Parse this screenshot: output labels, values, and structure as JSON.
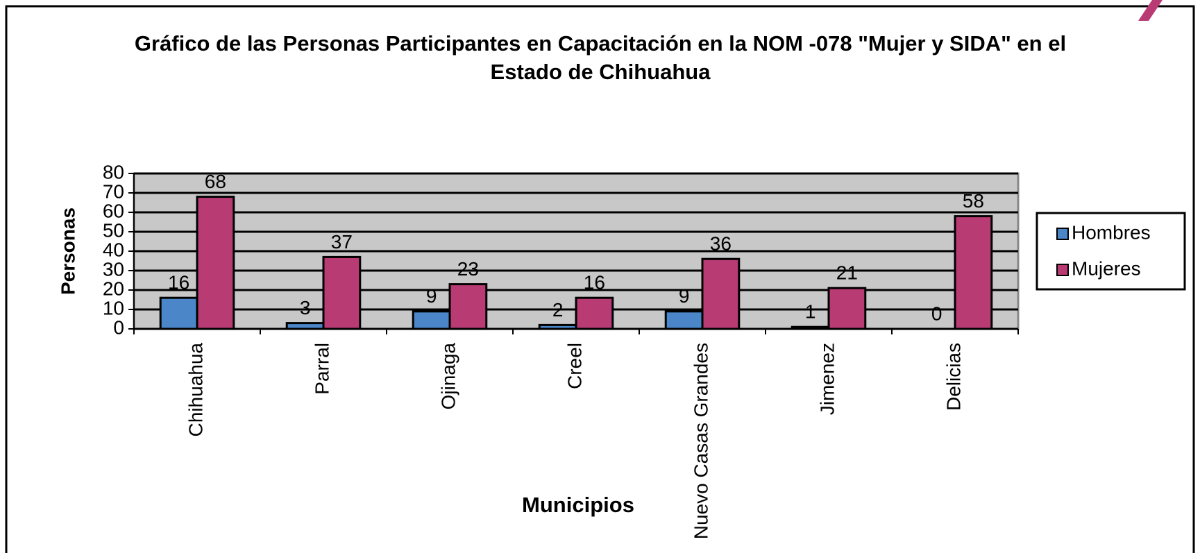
{
  "chart_data": {
    "type": "bar",
    "title": "Gráfico de las Personas Participantes en Capacitación en la NOM -078 \"Mujer y SIDA\" en el Estado de Chihuahua",
    "x_label": "Municipios",
    "y_label": "Personas",
    "categories": [
      "Chihuahua",
      "Parral",
      "Ojinaga",
      "Creel",
      "Nuevo Casas Grandes",
      "Jimenez",
      "Delicias"
    ],
    "series": [
      {
        "name": "Hombres",
        "color": "#4a86c8",
        "values": [
          16,
          3,
          9,
          2,
          9,
          1,
          0
        ]
      },
      {
        "name": "Mujeres",
        "color": "#b83b74",
        "values": [
          68,
          37,
          23,
          16,
          36,
          21,
          58
        ]
      }
    ],
    "ylim": [
      0,
      80
    ],
    "yticks": [
      0,
      10,
      20,
      30,
      40,
      50,
      60,
      70,
      80
    ],
    "grid": true,
    "legend": "right"
  }
}
